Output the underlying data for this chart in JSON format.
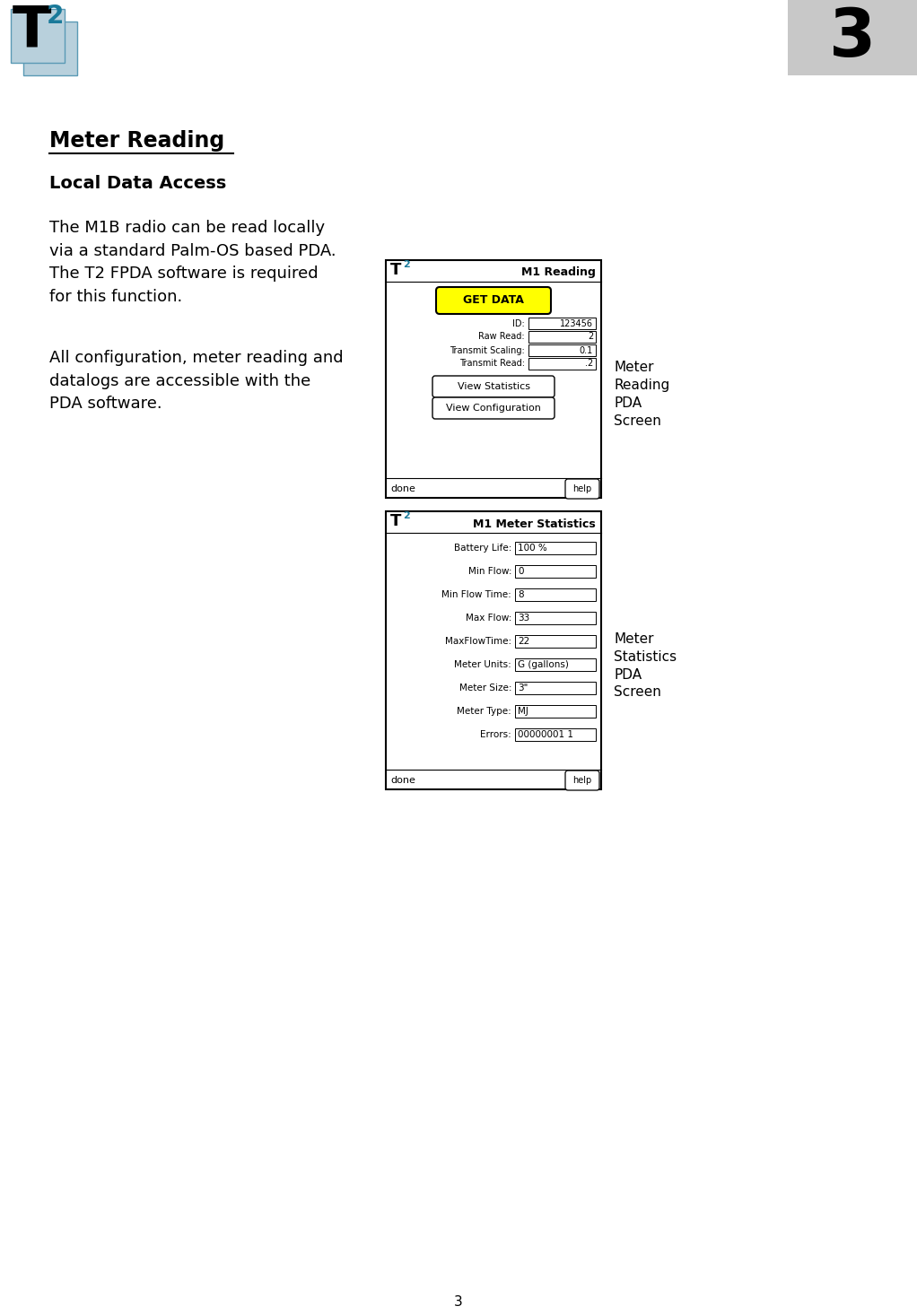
{
  "page_bg": "#ffffff",
  "chapter_number": "3",
  "chapter_box_color": "#c8c8c8",
  "title": "Meter Reading",
  "subtitle": "Local Data Access",
  "body_text_1": "The M1B radio can be read locally\nvia a standard Palm-OS based PDA.\nThe T2 FPDA software is required\nfor this function.",
  "body_text_2": "All configuration, meter reading and\ndatalogs are accessible with the\nPDA software.",
  "screen1_title": "M1 Reading",
  "screen1_button": "GET DATA",
  "screen1_fields": [
    {
      "label": "ID:",
      "value": "123456"
    },
    {
      "label": "Raw Read:",
      "value": "2"
    },
    {
      "label": "Transmit Scaling:",
      "value": "0.1"
    },
    {
      "label": "Transmit Read:",
      "value": ".2"
    }
  ],
  "screen1_buttons": [
    "View Statistics",
    "View Configuration"
  ],
  "screen1_label": "Meter\nReading\nPDA\nScreen",
  "screen2_title": "M1 Meter Statistics",
  "screen2_fields": [
    {
      "label": "Battery Life:",
      "value": "100 %"
    },
    {
      "label": "Min Flow:",
      "value": "0"
    },
    {
      "label": "Min Flow Time:",
      "value": "8"
    },
    {
      "label": "Max Flow:",
      "value": "33"
    },
    {
      "label": "MaxFlowTime:",
      "value": "22"
    },
    {
      "label": "Meter Units:",
      "value": "G (gallons)"
    },
    {
      "label": "Meter Size:",
      "value": "3\""
    },
    {
      "label": "Meter Type:",
      "value": "MJ"
    },
    {
      "label": "Errors:",
      "value": "00000001 1"
    }
  ],
  "screen2_label": "Meter\nStatistics\nPDA\nScreen",
  "footer_number": "3",
  "teal_color": "#1a7a9a",
  "yellow_color": "#ffff00",
  "logo_T_color": "#000000",
  "logo_box_color": "#b8d0dc",
  "logo_box_border": "#5a9ab5"
}
